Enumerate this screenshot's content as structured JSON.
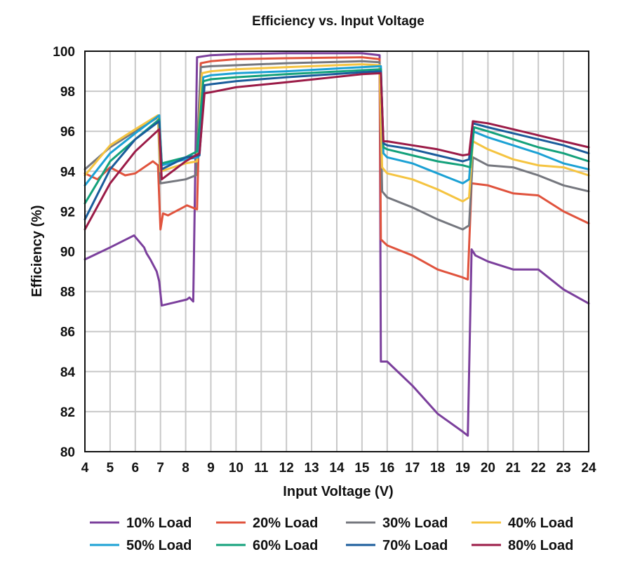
{
  "chart_data": {
    "type": "line",
    "title": "Efficiency vs. Input Voltage",
    "xlabel": "Input Voltage (V)",
    "ylabel": "Efficiency (%)",
    "xlim": [
      4,
      24
    ],
    "ylim": [
      80,
      100
    ],
    "x_ticks": [
      4,
      5,
      6,
      7,
      8,
      9,
      10,
      11,
      12,
      13,
      14,
      15,
      16,
      17,
      18,
      19,
      20,
      21,
      22,
      23,
      24
    ],
    "y_ticks": [
      80,
      82,
      84,
      86,
      88,
      90,
      92,
      94,
      96,
      98,
      100
    ],
    "grid": true,
    "legend_position": "bottom",
    "series": [
      {
        "name": "10% Load",
        "color": "#7b3f9c",
        "points": [
          [
            4,
            89.6
          ],
          [
            5,
            90.2
          ],
          [
            5.95,
            90.8
          ],
          [
            6.35,
            90.2
          ],
          [
            6.45,
            89.9
          ],
          [
            6.6,
            89.6
          ],
          [
            6.85,
            89.0
          ],
          [
            6.95,
            88.5
          ],
          [
            7.05,
            87.3
          ],
          [
            8.05,
            87.6
          ],
          [
            8.15,
            87.7
          ],
          [
            8.3,
            87.5
          ],
          [
            8.45,
            99.7
          ],
          [
            9.0,
            99.8
          ],
          [
            10,
            99.85
          ],
          [
            12,
            99.9
          ],
          [
            15.0,
            99.9
          ],
          [
            15.7,
            99.8
          ],
          [
            15.75,
            84.5
          ],
          [
            16.0,
            84.5
          ],
          [
            17.0,
            83.3
          ],
          [
            18.0,
            81.9
          ],
          [
            19.0,
            81.0
          ],
          [
            19.2,
            80.8
          ],
          [
            19.35,
            90.1
          ],
          [
            19.5,
            89.8
          ],
          [
            20.0,
            89.5
          ],
          [
            21.0,
            89.1
          ],
          [
            22.0,
            89.1
          ],
          [
            23.0,
            88.1
          ],
          [
            24.0,
            87.4
          ]
        ]
      },
      {
        "name": "20% Load",
        "color": "#e0533d",
        "points": [
          [
            4,
            93.9
          ],
          [
            4.5,
            93.6
          ],
          [
            5.0,
            94.2
          ],
          [
            5.6,
            93.8
          ],
          [
            6.0,
            93.9
          ],
          [
            6.7,
            94.5
          ],
          [
            6.9,
            94.3
          ],
          [
            7.0,
            91.1
          ],
          [
            7.1,
            91.9
          ],
          [
            7.3,
            91.8
          ],
          [
            8.05,
            92.3
          ],
          [
            8.45,
            92.1
          ],
          [
            8.6,
            99.4
          ],
          [
            9.0,
            99.5
          ],
          [
            10,
            99.6
          ],
          [
            12,
            99.65
          ],
          [
            15,
            99.7
          ],
          [
            15.7,
            99.6
          ],
          [
            15.75,
            90.6
          ],
          [
            16.0,
            90.3
          ],
          [
            17.0,
            89.8
          ],
          [
            18.0,
            89.1
          ],
          [
            19.0,
            88.7
          ],
          [
            19.2,
            88.6
          ],
          [
            19.35,
            93.4
          ],
          [
            20.0,
            93.3
          ],
          [
            21.0,
            92.9
          ],
          [
            22.0,
            92.8
          ],
          [
            23.0,
            92.0
          ],
          [
            24.0,
            91.4
          ]
        ]
      },
      {
        "name": "30% Load",
        "color": "#75777e",
        "points": [
          [
            4,
            94.1
          ],
          [
            5.0,
            95.2
          ],
          [
            6.0,
            96.0
          ],
          [
            6.9,
            96.7
          ],
          [
            7.0,
            93.4
          ],
          [
            8.0,
            93.6
          ],
          [
            8.4,
            93.8
          ],
          [
            8.6,
            99.2
          ],
          [
            9.0,
            99.25
          ],
          [
            10,
            99.3
          ],
          [
            12,
            99.4
          ],
          [
            15,
            99.5
          ],
          [
            15.7,
            99.45
          ],
          [
            15.8,
            93.0
          ],
          [
            16.0,
            92.7
          ],
          [
            17.0,
            92.2
          ],
          [
            18.0,
            91.6
          ],
          [
            19.0,
            91.1
          ],
          [
            19.25,
            91.3
          ],
          [
            19.4,
            94.7
          ],
          [
            20.0,
            94.3
          ],
          [
            21.0,
            94.2
          ],
          [
            22.0,
            93.8
          ],
          [
            23.0,
            93.3
          ],
          [
            24.0,
            93.0
          ]
        ]
      },
      {
        "name": "40% Load",
        "color": "#f5c441",
        "points": [
          [
            4,
            93.8
          ],
          [
            5.0,
            95.3
          ],
          [
            6.0,
            96.1
          ],
          [
            6.9,
            96.8
          ],
          [
            7.0,
            94.0
          ],
          [
            8.0,
            94.4
          ],
          [
            8.45,
            94.5
          ],
          [
            8.65,
            98.9
          ],
          [
            9.0,
            99.0
          ],
          [
            10,
            99.1
          ],
          [
            12,
            99.2
          ],
          [
            15,
            99.35
          ],
          [
            15.7,
            99.3
          ],
          [
            15.8,
            94.2
          ],
          [
            16.0,
            93.9
          ],
          [
            17.0,
            93.6
          ],
          [
            18.0,
            93.1
          ],
          [
            19.0,
            92.5
          ],
          [
            19.25,
            92.7
          ],
          [
            19.4,
            95.5
          ],
          [
            20.0,
            95.1
          ],
          [
            21.0,
            94.6
          ],
          [
            22.0,
            94.3
          ],
          [
            23.0,
            94.2
          ],
          [
            24.0,
            93.8
          ]
        ]
      },
      {
        "name": "50% Load",
        "color": "#1ba1d4",
        "points": [
          [
            4,
            93.3
          ],
          [
            5.0,
            94.9
          ],
          [
            6.0,
            95.9
          ],
          [
            6.95,
            96.8
          ],
          [
            7.05,
            94.3
          ],
          [
            8.0,
            94.6
          ],
          [
            8.5,
            94.7
          ],
          [
            8.7,
            98.7
          ],
          [
            9.0,
            98.8
          ],
          [
            10,
            98.9
          ],
          [
            12,
            99.0
          ],
          [
            15,
            99.2
          ],
          [
            15.75,
            99.25
          ],
          [
            15.85,
            94.9
          ],
          [
            16.0,
            94.7
          ],
          [
            17.0,
            94.4
          ],
          [
            18.0,
            93.9
          ],
          [
            19.0,
            93.4
          ],
          [
            19.25,
            93.6
          ],
          [
            19.4,
            96.0
          ],
          [
            20.0,
            95.7
          ],
          [
            21.0,
            95.3
          ],
          [
            22.0,
            94.9
          ],
          [
            23.0,
            94.4
          ],
          [
            24.0,
            94.1
          ]
        ]
      },
      {
        "name": "60% Load",
        "color": "#13a17b",
        "points": [
          [
            4,
            92.4
          ],
          [
            5.0,
            94.5
          ],
          [
            6.0,
            95.6
          ],
          [
            6.95,
            96.6
          ],
          [
            7.05,
            94.4
          ],
          [
            8.0,
            94.7
          ],
          [
            8.45,
            95.0
          ],
          [
            8.7,
            98.5
          ],
          [
            9.0,
            98.6
          ],
          [
            10,
            98.7
          ],
          [
            12,
            98.85
          ],
          [
            15,
            99.05
          ],
          [
            15.75,
            99.1
          ],
          [
            15.85,
            95.2
          ],
          [
            16.0,
            95.1
          ],
          [
            17.0,
            94.8
          ],
          [
            18.0,
            94.5
          ],
          [
            19.0,
            94.3
          ],
          [
            19.3,
            94.2
          ],
          [
            19.45,
            96.2
          ],
          [
            20.0,
            96.0
          ],
          [
            21.0,
            95.6
          ],
          [
            22.0,
            95.2
          ],
          [
            23.0,
            94.9
          ],
          [
            24.0,
            94.5
          ]
        ]
      },
      {
        "name": "70% Load",
        "color": "#1a5c9b",
        "points": [
          [
            4,
            91.6
          ],
          [
            5.0,
            94.1
          ],
          [
            6.0,
            95.6
          ],
          [
            6.95,
            96.5
          ],
          [
            7.05,
            94.1
          ],
          [
            8.0,
            94.7
          ],
          [
            8.55,
            94.8
          ],
          [
            8.75,
            98.3
          ],
          [
            9.0,
            98.35
          ],
          [
            10,
            98.5
          ],
          [
            12,
            98.7
          ],
          [
            15,
            98.95
          ],
          [
            15.75,
            99.0
          ],
          [
            15.85,
            95.4
          ],
          [
            16.0,
            95.3
          ],
          [
            17.0,
            95.1
          ],
          [
            18.0,
            94.8
          ],
          [
            19.0,
            94.5
          ],
          [
            19.25,
            94.6
          ],
          [
            19.4,
            96.4
          ],
          [
            20.0,
            96.2
          ],
          [
            21.0,
            95.9
          ],
          [
            22.0,
            95.6
          ],
          [
            23.0,
            95.3
          ],
          [
            24.0,
            94.9
          ]
        ]
      },
      {
        "name": "80% Load",
        "color": "#9b1b47",
        "points": [
          [
            4,
            91.1
          ],
          [
            5.0,
            93.4
          ],
          [
            6.0,
            95.0
          ],
          [
            6.95,
            96.1
          ],
          [
            7.05,
            93.6
          ],
          [
            8.0,
            94.5
          ],
          [
            8.55,
            94.9
          ],
          [
            8.75,
            97.9
          ],
          [
            9.0,
            97.95
          ],
          [
            10,
            98.2
          ],
          [
            12,
            98.45
          ],
          [
            15,
            98.85
          ],
          [
            15.75,
            98.9
          ],
          [
            15.85,
            95.5
          ],
          [
            16.0,
            95.5
          ],
          [
            17.0,
            95.3
          ],
          [
            18.0,
            95.1
          ],
          [
            19.0,
            94.8
          ],
          [
            19.25,
            94.85
          ],
          [
            19.4,
            96.5
          ],
          [
            20.0,
            96.4
          ],
          [
            21.0,
            96.1
          ],
          [
            22.0,
            95.8
          ],
          [
            23.0,
            95.5
          ],
          [
            24.0,
            95.2
          ]
        ]
      }
    ]
  }
}
